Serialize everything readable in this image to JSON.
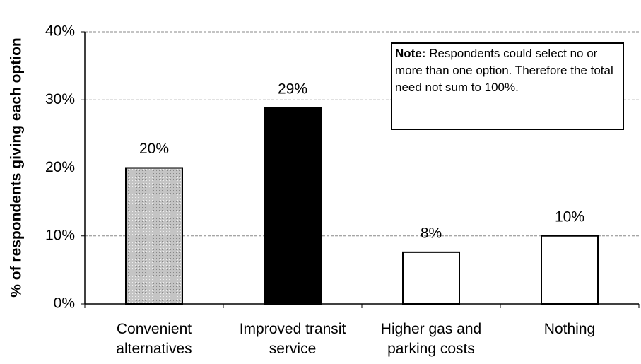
{
  "chart_data": {
    "type": "bar",
    "y_label": "% of respondents giving each option",
    "categories": [
      "Convenient alternatives",
      "Improved transit service",
      "Higher gas and parking costs",
      "Nothing"
    ],
    "values": [
      20,
      28.8,
      7.6,
      10
    ],
    "value_labels": [
      "20%",
      "29%",
      "8%",
      "10%"
    ],
    "colors": [
      "#c4c4c4",
      "#000000",
      "#ffffff",
      "#ffffff"
    ],
    "ylim": [
      0,
      40
    ],
    "yticks": [
      {
        "value": 0,
        "label": "0%"
      },
      {
        "value": 10,
        "label": "10%"
      },
      {
        "value": 20,
        "label": "20%"
      },
      {
        "value": 30,
        "label": "30%"
      },
      {
        "value": 40,
        "label": "40%"
      }
    ],
    "grid": true,
    "note": {
      "label": "Note:",
      "text": "Respondents could select no or more than one option. Therefore the total need not sum to 100%."
    }
  }
}
